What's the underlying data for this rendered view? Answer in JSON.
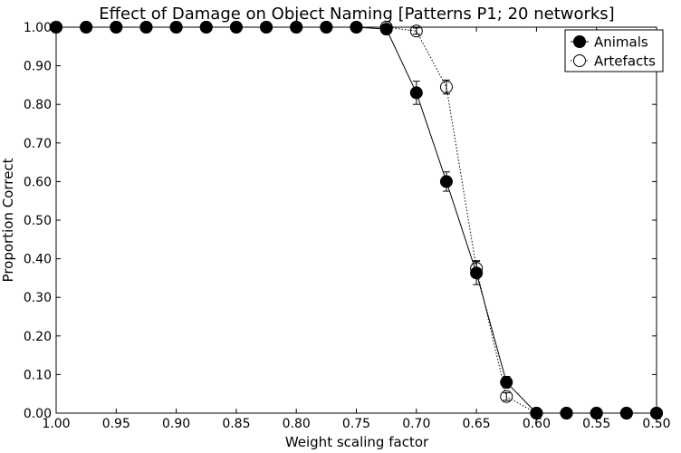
{
  "chart_data": {
    "type": "line",
    "title": "Effect of Damage on Object Naming [Patterns P1; 20 networks]",
    "xlabel": "Weight scaling factor",
    "ylabel": "Proportion Correct",
    "xlim": [
      1.0,
      0.5
    ],
    "ylim": [
      0.0,
      1.0
    ],
    "x_reversed": true,
    "grid": false,
    "legend_position": "top-right",
    "x_ticks": [
      "1.00",
      "0.95",
      "0.90",
      "0.85",
      "0.80",
      "0.75",
      "0.70",
      "0.65",
      "0.60",
      "0.55",
      "0.50"
    ],
    "y_ticks": [
      "0.00",
      "0.10",
      "0.20",
      "0.30",
      "0.40",
      "0.50",
      "0.60",
      "0.70",
      "0.80",
      "0.90",
      "1.00"
    ],
    "x": [
      1.0,
      0.975,
      0.95,
      0.925,
      0.9,
      0.875,
      0.85,
      0.825,
      0.8,
      0.775,
      0.75,
      0.725,
      0.7,
      0.675,
      0.65,
      0.625,
      0.6,
      0.575,
      0.55,
      0.525,
      0.5
    ],
    "series": [
      {
        "name": "Animals",
        "marker": "filled-circle",
        "line_style": "solid",
        "color": "#000000",
        "values": [
          1.0,
          1.0,
          1.0,
          1.0,
          1.0,
          1.0,
          1.0,
          1.0,
          1.0,
          1.0,
          1.0,
          0.995,
          0.83,
          0.6,
          0.363,
          0.08,
          0.0,
          0.0,
          0.0,
          0.0,
          0.0
        ],
        "errors": [
          0,
          0,
          0,
          0,
          0,
          0,
          0,
          0,
          0,
          0,
          0,
          0.004,
          0.03,
          0.025,
          0.03,
          0.015,
          0,
          0,
          0,
          0,
          0
        ]
      },
      {
        "name": "Artefacts",
        "marker": "open-circle",
        "line_style": "dotted",
        "color": "#000000",
        "values": [
          1.0,
          1.0,
          1.0,
          1.0,
          1.0,
          1.0,
          1.0,
          1.0,
          1.0,
          1.0,
          1.0,
          1.0,
          0.99,
          0.845,
          0.375,
          0.043,
          0.0,
          0.0,
          0.0,
          0.0,
          0.0
        ],
        "errors": [
          0,
          0,
          0,
          0,
          0,
          0,
          0,
          0,
          0,
          0,
          0,
          0.003,
          0.008,
          0.018,
          0.02,
          0.01,
          0,
          0,
          0,
          0,
          0
        ]
      }
    ]
  }
}
